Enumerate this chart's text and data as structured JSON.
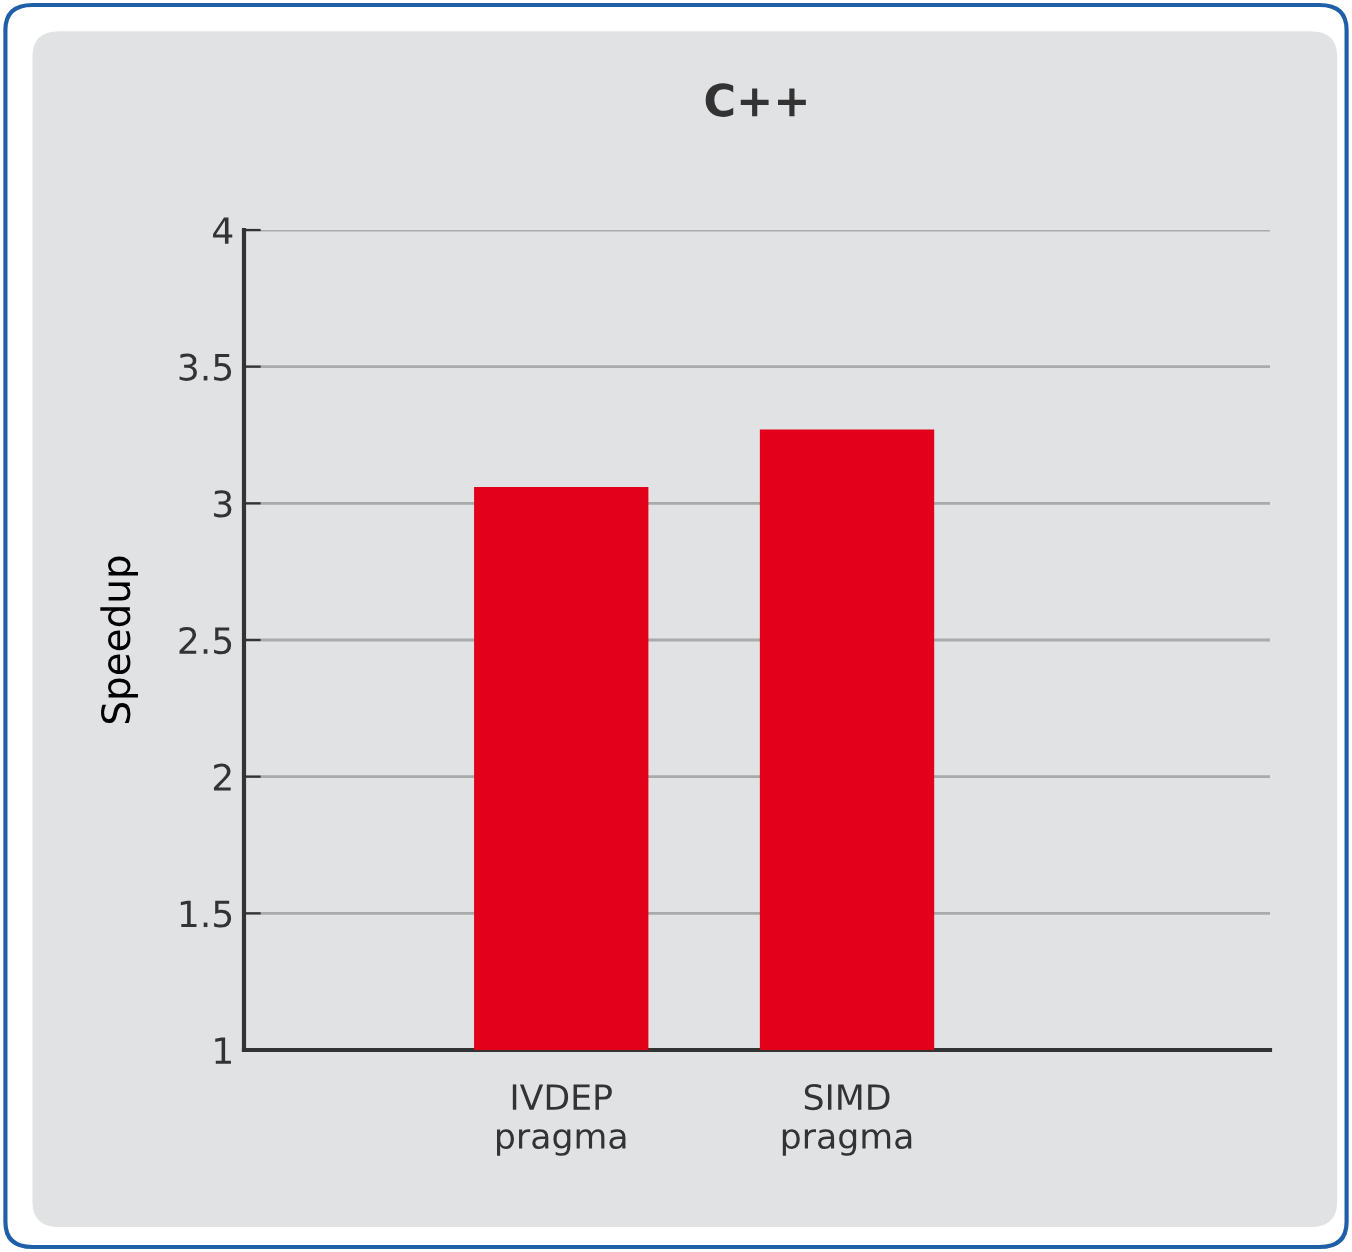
{
  "chart_data": {
    "type": "bar",
    "title": "C++",
    "ylabel": "Speedup",
    "categories": [
      "IVDEP\npragma",
      "SIMD\npragma"
    ],
    "values": [
      3.06,
      3.27
    ],
    "color": "#e2001a",
    "ylim": [
      1,
      4
    ],
    "yticks": [
      1,
      1.5,
      2,
      2.5,
      3,
      3.5,
      4
    ],
    "grid": "y"
  }
}
